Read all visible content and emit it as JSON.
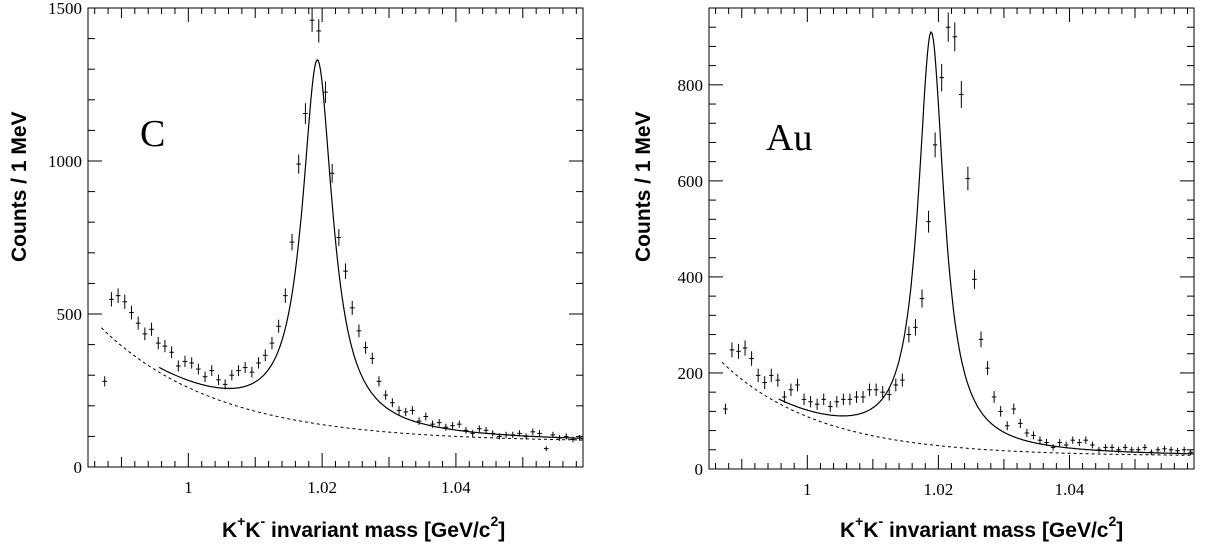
{
  "chart_data": [
    {
      "type": "scatter",
      "target": "C",
      "ylabel": "Counts / 1 MeV",
      "xlabel_parts": {
        "k1": "K",
        "sup1": "+",
        "k2": "K",
        "sup2": "-",
        "text": " invariant mass [GeV/c",
        "sup3": "2",
        "close": "]"
      },
      "xlim": [
        0.985,
        1.059
      ],
      "ylim": [
        0,
        1500
      ],
      "x_ticks": [
        1.0,
        1.02,
        1.04
      ],
      "x_tick_labels": [
        "1",
        "1.02",
        "1.04"
      ],
      "y_ticks": [
        0,
        500,
        1000,
        1500
      ],
      "y_tick_labels": [
        "0",
        "500",
        "1000",
        "1500"
      ],
      "peak": {
        "mass": 1.0193,
        "width": 0.0055
      },
      "signal_amplitude": 1190,
      "background": {
        "a": 455,
        "b": 82,
        "tau": 0.0175,
        "x0": 0.987
      },
      "points": {
        "x": [
          0.9875,
          0.9885,
          0.9895,
          0.9905,
          0.9915,
          0.9925,
          0.9935,
          0.9945,
          0.9955,
          0.9965,
          0.9975,
          0.9985,
          0.9995,
          1.0005,
          1.0015,
          1.0025,
          1.0035,
          1.0045,
          1.0055,
          1.0065,
          1.0075,
          1.0085,
          1.0095,
          1.0105,
          1.0115,
          1.0125,
          1.0135,
          1.0145,
          1.0155,
          1.0165,
          1.0175,
          1.0185,
          1.0195,
          1.0205,
          1.0215,
          1.0225,
          1.0235,
          1.0245,
          1.0255,
          1.0265,
          1.0275,
          1.0285,
          1.0295,
          1.0305,
          1.0315,
          1.0325,
          1.0335,
          1.0345,
          1.0355,
          1.0365,
          1.0375,
          1.0385,
          1.0395,
          1.0405,
          1.0415,
          1.0425,
          1.0435,
          1.0445,
          1.0455,
          1.0465,
          1.0475,
          1.0485,
          1.0495,
          1.0505,
          1.0515,
          1.0525,
          1.0535,
          1.0545,
          1.0555,
          1.0565,
          1.0575,
          1.0585
        ],
        "y": [
          280,
          548,
          560,
          540,
          505,
          470,
          435,
          450,
          405,
          395,
          375,
          330,
          345,
          340,
          320,
          295,
          315,
          285,
          270,
          300,
          315,
          325,
          310,
          340,
          365,
          405,
          460,
          560,
          735,
          990,
          1155,
          1460,
          1425,
          1225,
          960,
          750,
          640,
          520,
          445,
          390,
          355,
          280,
          235,
          210,
          185,
          180,
          185,
          150,
          165,
          140,
          145,
          130,
          135,
          140,
          120,
          110,
          125,
          120,
          110,
          100,
          105,
          105,
          110,
          100,
          115,
          110,
          60,
          105,
          95,
          100,
          90,
          95
        ]
      }
    },
    {
      "type": "scatter",
      "target": "Au",
      "ylabel": "Counts / 1 MeV",
      "xlabel_parts": {
        "k1": "K",
        "sup1": "+",
        "k2": "K",
        "sup2": "-",
        "text": " invariant mass [GeV/c",
        "sup3": "2",
        "close": "]"
      },
      "xlim": [
        0.985,
        1.059
      ],
      "ylim": [
        0,
        960
      ],
      "x_ticks": [
        1.0,
        1.02,
        1.04
      ],
      "x_tick_labels": [
        "1",
        "1.02",
        "1.04"
      ],
      "y_ticks": [
        0,
        200,
        400,
        600,
        800
      ],
      "y_tick_labels": [
        "0",
        "200",
        "400",
        "600",
        "800"
      ],
      "peak": {
        "mass": 1.0189,
        "width": 0.0048
      },
      "signal_amplitude": 860,
      "background": {
        "a": 222,
        "b": 27,
        "tau": 0.015,
        "x0": 0.987
      },
      "points": {
        "x": [
          0.9875,
          0.9885,
          0.9895,
          0.9905,
          0.9915,
          0.9925,
          0.9935,
          0.9945,
          0.9955,
          0.9965,
          0.9975,
          0.9985,
          0.9995,
          1.0005,
          1.0015,
          1.0025,
          1.0035,
          1.0045,
          1.0055,
          1.0065,
          1.0075,
          1.0085,
          1.0095,
          1.0105,
          1.0115,
          1.0125,
          1.0135,
          1.0145,
          1.0155,
          1.0165,
          1.0175,
          1.0185,
          1.0195,
          1.0205,
          1.0215,
          1.0225,
          1.0235,
          1.0245,
          1.0255,
          1.0265,
          1.0275,
          1.0285,
          1.0295,
          1.0305,
          1.0315,
          1.0325,
          1.0335,
          1.0345,
          1.0355,
          1.0365,
          1.0375,
          1.0385,
          1.0395,
          1.0405,
          1.0415,
          1.0425,
          1.0435,
          1.0445,
          1.0455,
          1.0465,
          1.0475,
          1.0485,
          1.0495,
          1.0505,
          1.0515,
          1.0525,
          1.0535,
          1.0545,
          1.0555,
          1.0565,
          1.0575,
          1.0585
        ],
        "y": [
          125,
          248,
          245,
          252,
          230,
          195,
          180,
          195,
          185,
          150,
          165,
          175,
          145,
          140,
          135,
          145,
          130,
          140,
          145,
          145,
          150,
          150,
          165,
          165,
          160,
          155,
          175,
          185,
          280,
          295,
          355,
          515,
          675,
          815,
          920,
          900,
          780,
          605,
          395,
          270,
          210,
          150,
          120,
          90,
          125,
          95,
          75,
          70,
          60,
          55,
          45,
          55,
          50,
          60,
          55,
          60,
          50,
          40,
          45,
          45,
          40,
          45,
          40,
          40,
          45,
          35,
          40,
          42,
          40,
          38,
          40,
          35
        ]
      }
    }
  ]
}
